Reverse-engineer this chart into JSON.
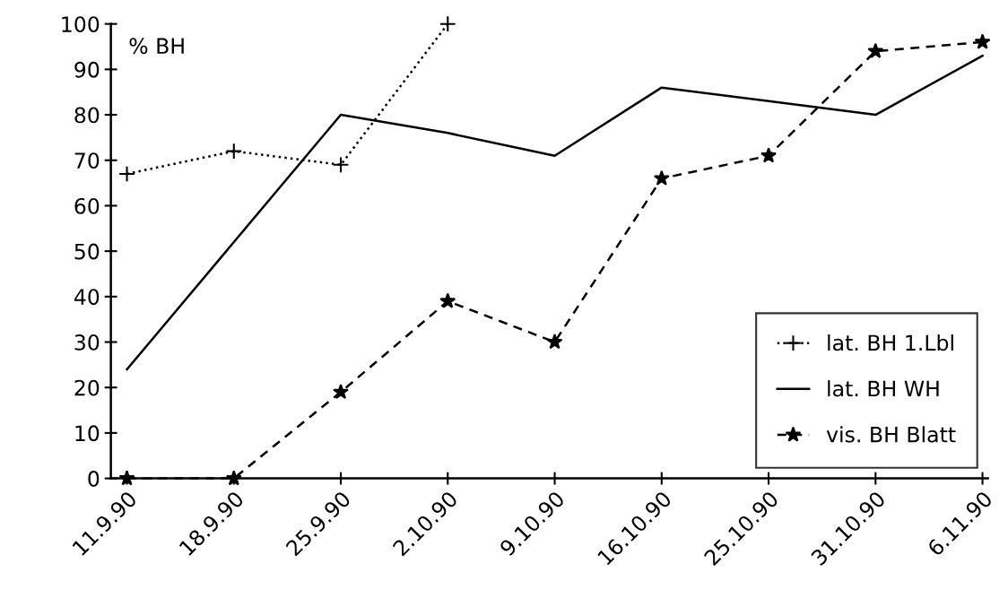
{
  "chart_data": {
    "type": "line",
    "ylabel": "% BH",
    "categories": [
      "11.9.90",
      "18.9.90",
      "25.9.90",
      "2.10.90",
      "9.10.90",
      "16.10.90",
      "25.10.90",
      "31.10.90",
      "6.11.90"
    ],
    "series": [
      {
        "name": "lat. BH 1.Lbl",
        "color": "#000000",
        "marker": "cross",
        "line_style": "dotted",
        "values": [
          67,
          72,
          69,
          100,
          null,
          null,
          null,
          null,
          null
        ]
      },
      {
        "name": "lat. BH WH",
        "color": "#000000",
        "marker": "none",
        "line_style": "solid",
        "values": [
          24,
          52,
          80,
          76,
          71,
          86,
          83,
          80,
          93
        ]
      },
      {
        "name": "vis. BH Blatt",
        "color": "#000000",
        "marker": "star",
        "line_style": "dashed",
        "values": [
          0,
          0,
          19,
          39,
          30,
          66,
          71,
          94,
          96
        ]
      }
    ],
    "ylim": [
      0,
      100
    ],
    "yticks": [
      0,
      10,
      20,
      30,
      40,
      50,
      60,
      70,
      80,
      90,
      100
    ],
    "grid": false,
    "legend": "bottom right"
  }
}
